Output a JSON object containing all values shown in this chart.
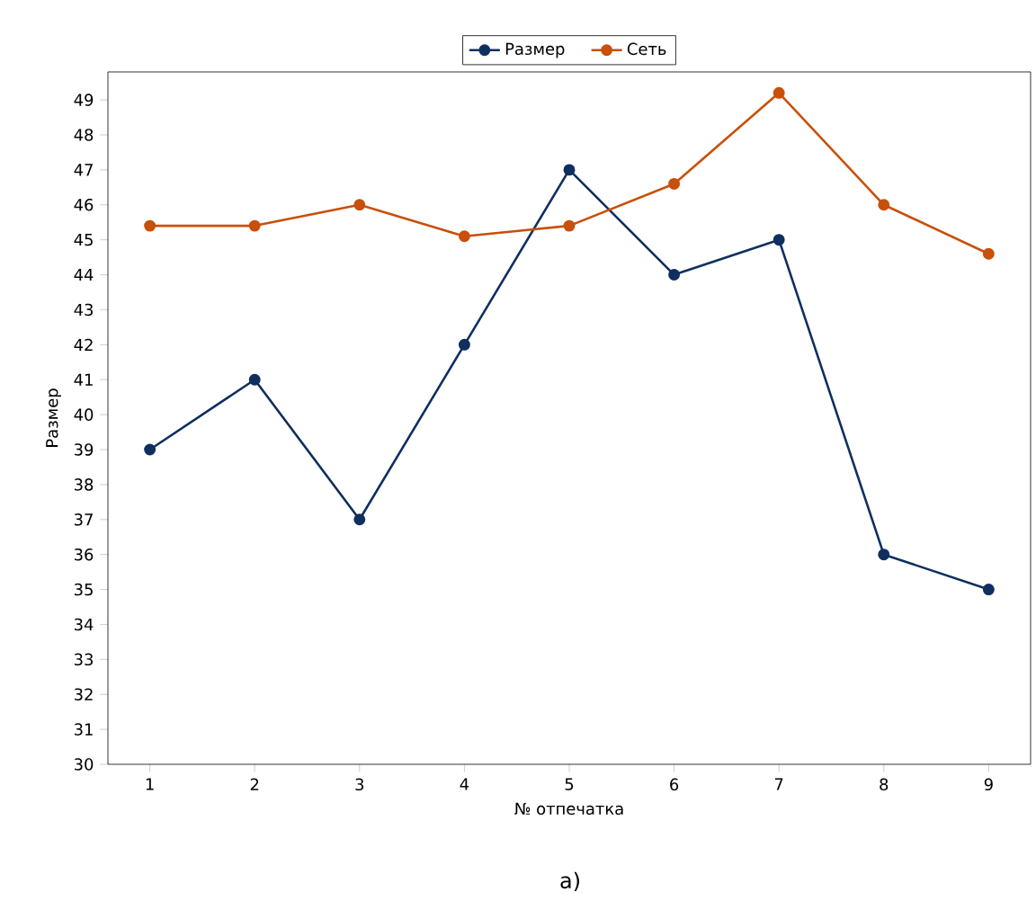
{
  "chart_data": {
    "type": "line",
    "xlabel": "№ отпечатка",
    "ylabel": "Размер",
    "annotations": [
      "а)"
    ],
    "x": [
      1,
      2,
      3,
      4,
      5,
      6,
      7,
      8,
      9
    ],
    "series": [
      {
        "name": "Размер",
        "color": "#0f2f5f",
        "values": [
          39,
          41,
          37,
          42,
          47,
          44,
          45,
          36,
          35
        ]
      },
      {
        "name": "Сеть",
        "color": "#c8500a",
        "values": [
          45.4,
          45.4,
          46.0,
          45.1,
          45.4,
          46.6,
          49.2,
          46.0,
          44.6
        ]
      }
    ],
    "xlim": [
      0.6,
      9.4
    ],
    "ylim": [
      30,
      49.8
    ],
    "xticks": [
      1,
      2,
      3,
      4,
      5,
      6,
      7,
      8,
      9
    ],
    "yticks": [
      30,
      31,
      32,
      33,
      34,
      35,
      36,
      37,
      38,
      39,
      40,
      41,
      42,
      43,
      44,
      45,
      46,
      47,
      48,
      49
    ],
    "grid": false,
    "legend": "top",
    "marker": "circle",
    "line_style": "solid"
  }
}
